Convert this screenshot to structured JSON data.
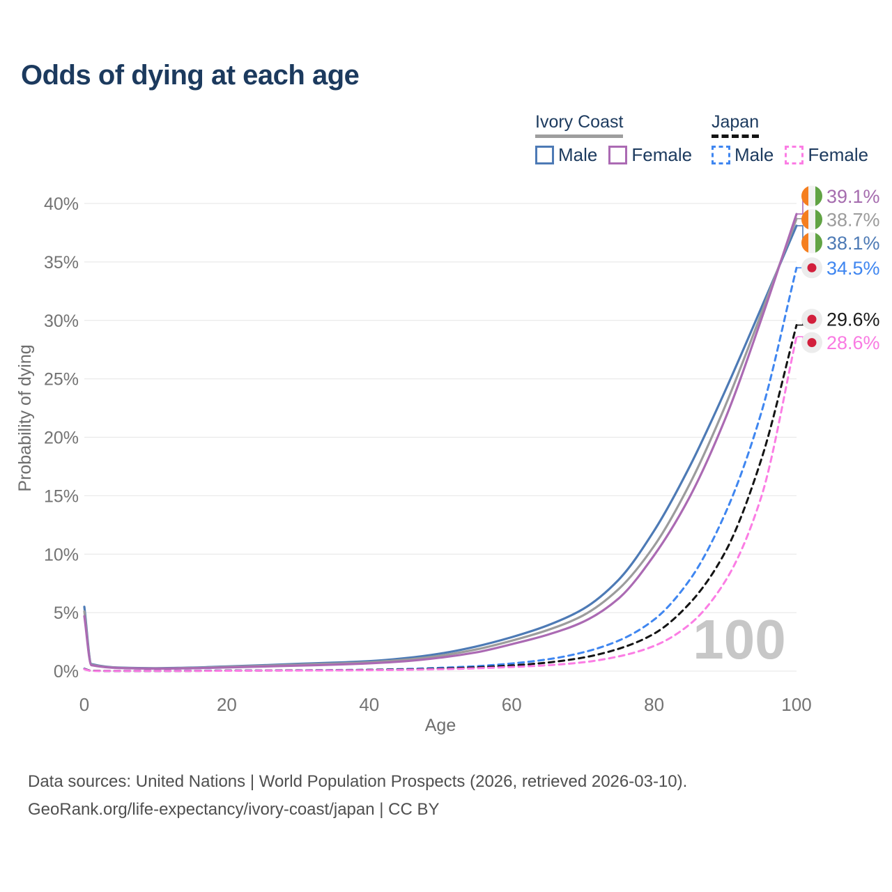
{
  "title": "Odds of dying at each age",
  "legend": {
    "groups": [
      {
        "name": "Ivory Coast",
        "line_style": "solid",
        "underline_color": "#9e9e9e",
        "items": [
          {
            "label": "Male",
            "color": "#4d7ab5"
          },
          {
            "label": "Female",
            "color": "#ab6ab3"
          }
        ]
      },
      {
        "name": "Japan",
        "line_style": "dashed",
        "underline_color": "#141414",
        "items": [
          {
            "label": "Male",
            "color": "#3f86f0"
          },
          {
            "label": "Female",
            "color": "#fb7de4"
          }
        ]
      }
    ]
  },
  "chart_data": {
    "type": "line",
    "title": "Odds of dying at each age",
    "xlabel": "Age",
    "ylabel": "Probability of dying",
    "xlim": [
      0,
      100
    ],
    "ylim": [
      0,
      40
    ],
    "x_ticks": [
      0,
      20,
      40,
      60,
      80,
      100
    ],
    "y_ticks": [
      0,
      5,
      10,
      15,
      20,
      25,
      30,
      35,
      40
    ],
    "y_tick_suffix": "%",
    "grid": true,
    "legend_position": "top-right",
    "watermark": "100",
    "ages": [
      0,
      1,
      5,
      10,
      15,
      20,
      25,
      30,
      35,
      40,
      45,
      50,
      55,
      60,
      65,
      70,
      75,
      80,
      85,
      90,
      95,
      100
    ],
    "series": [
      {
        "name": "Ivory Coast Male",
        "country": "ivory-coast",
        "sex": "male",
        "color": "#4d7ab5",
        "label_color": "#4d7ab5",
        "dash": false,
        "end_label": "38.1%",
        "values": [
          5.5,
          0.6,
          0.3,
          0.25,
          0.3,
          0.4,
          0.5,
          0.62,
          0.72,
          0.85,
          1.1,
          1.5,
          2.1,
          2.9,
          3.9,
          5.3,
          7.8,
          12.0,
          17.5,
          24.0,
          31.0,
          38.1
        ]
      },
      {
        "name": "Ivory Coast Combined",
        "country": "ivory-coast",
        "sex": "combined",
        "color": "#9c9c9c",
        "label_color": "#9b9b9b",
        "dash": false,
        "end_label": "38.7%",
        "values": [
          5.1,
          0.55,
          0.28,
          0.23,
          0.27,
          0.36,
          0.45,
          0.55,
          0.64,
          0.76,
          0.97,
          1.32,
          1.85,
          2.6,
          3.5,
          4.75,
          7.0,
          10.7,
          16.0,
          22.7,
          30.5,
          38.7
        ]
      },
      {
        "name": "Ivory Coast Female",
        "country": "ivory-coast",
        "sex": "female",
        "color": "#ab6ab3",
        "label_color": "#a56cae",
        "dash": false,
        "end_label": "39.1%",
        "values": [
          4.7,
          0.5,
          0.26,
          0.21,
          0.24,
          0.31,
          0.39,
          0.47,
          0.55,
          0.66,
          0.84,
          1.15,
          1.6,
          2.3,
          3.1,
          4.2,
          6.2,
          9.9,
          14.9,
          21.6,
          30.0,
          39.1
        ]
      },
      {
        "name": "Japan Male",
        "country": "japan",
        "sex": "male",
        "color": "#3f86f0",
        "label_color": "#3f86f0",
        "dash": true,
        "end_label": "34.5%",
        "values": [
          0.2,
          0.03,
          0.01,
          0.01,
          0.03,
          0.05,
          0.06,
          0.07,
          0.09,
          0.12,
          0.18,
          0.28,
          0.42,
          0.65,
          1.0,
          1.6,
          2.6,
          4.4,
          7.8,
          13.5,
          22.0,
          34.5
        ]
      },
      {
        "name": "Japan Combined",
        "country": "japan",
        "sex": "combined",
        "color": "#141414",
        "label_color": "#1a1a1a",
        "dash": true,
        "end_label": "29.6%",
        "values": [
          0.18,
          0.03,
          0.01,
          0.01,
          0.02,
          0.04,
          0.05,
          0.06,
          0.07,
          0.1,
          0.14,
          0.21,
          0.32,
          0.48,
          0.73,
          1.15,
          1.9,
          3.2,
          5.8,
          10.2,
          18.0,
          29.6
        ]
      },
      {
        "name": "Japan Female",
        "country": "japan",
        "sex": "female",
        "color": "#fb7de4",
        "label_color": "#f97ae2",
        "dash": true,
        "end_label": "28.6%",
        "values": [
          0.16,
          0.02,
          0.01,
          0.01,
          0.02,
          0.03,
          0.04,
          0.05,
          0.06,
          0.08,
          0.11,
          0.16,
          0.24,
          0.35,
          0.5,
          0.75,
          1.25,
          2.15,
          4.0,
          7.7,
          14.8,
          28.6
        ]
      }
    ]
  },
  "flags": {
    "ivory_coast": {
      "orange": "#f57f1f",
      "white": "#f2f2f2",
      "green": "#61a344"
    },
    "japan": {
      "background": "#ececec",
      "red": "#d21f3c"
    }
  },
  "styles": {
    "grid_color": "#eaeaea",
    "tick_color": "#737373",
    "axis_title_color": "#6e6e6e",
    "watermark_color": "#c7c7c7",
    "title_color": "#1c3a5e"
  },
  "footer": {
    "line1": "Data sources: United Nations | World Population Prospects (2026, retrieved 2026-03-10).",
    "line2": "GeoRank.org/life-expectancy/ivory-coast/japan | CC BY"
  }
}
